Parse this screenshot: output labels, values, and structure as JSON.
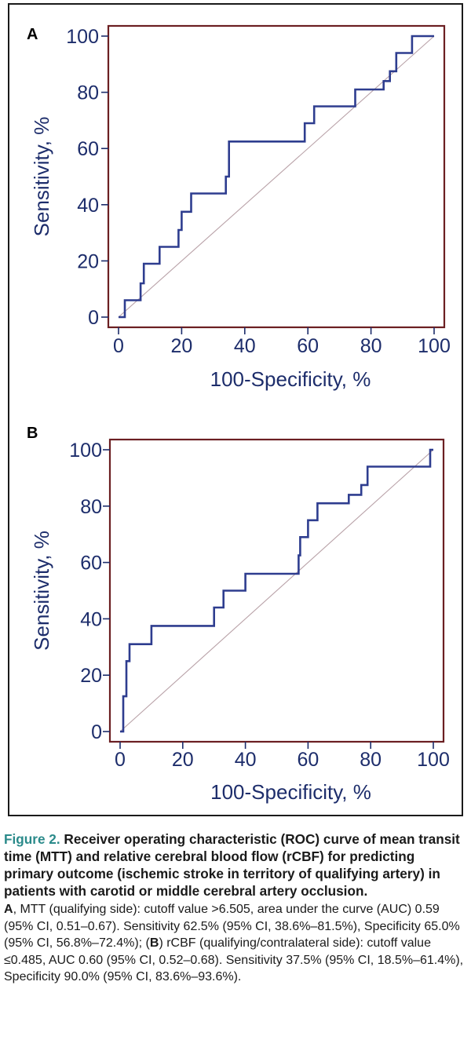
{
  "chart_data": [
    {
      "type": "line",
      "panel": "A",
      "xlabel": "100-Specificity, %",
      "ylabel": "Sensitivity, %",
      "xlim": [
        0,
        100
      ],
      "ylim": [
        0,
        100
      ],
      "xticks": [
        0,
        20,
        40,
        60,
        80,
        100
      ],
      "yticks": [
        0,
        20,
        40,
        60,
        80,
        100
      ],
      "reference_line": [
        [
          0,
          0
        ],
        [
          100,
          100
        ]
      ],
      "series": [
        {
          "x": [
            0,
            0,
            2,
            2,
            7,
            7,
            8,
            8,
            13,
            13,
            19,
            19,
            20,
            20,
            23,
            23,
            34,
            34,
            35,
            35,
            59,
            59,
            62,
            62,
            75,
            75,
            84,
            84,
            86,
            86,
            88,
            88,
            93,
            93,
            100
          ],
          "y": [
            0,
            0,
            0,
            6,
            6,
            12,
            12,
            19,
            19,
            25,
            25,
            31,
            31,
            37.5,
            37.5,
            44,
            44,
            50,
            50,
            62.5,
            62.5,
            69,
            69,
            75,
            75,
            81,
            81,
            84,
            84,
            87.5,
            87.5,
            94,
            94,
            100,
            100
          ]
        }
      ]
    },
    {
      "type": "line",
      "panel": "B",
      "xlabel": "100-Specificity, %",
      "ylabel": "Sensitivity, %",
      "xlim": [
        0,
        100
      ],
      "ylim": [
        0,
        100
      ],
      "xticks": [
        0,
        20,
        40,
        60,
        80,
        100
      ],
      "yticks": [
        0,
        20,
        40,
        60,
        80,
        100
      ],
      "reference_line": [
        [
          0,
          0
        ],
        [
          100,
          100
        ]
      ],
      "series": [
        {
          "x": [
            0,
            0,
            1,
            1,
            2,
            2,
            3,
            3,
            10,
            10,
            30,
            30,
            33,
            33,
            40,
            40,
            57,
            57,
            57.5,
            57.5,
            60,
            60,
            63,
            63,
            73,
            73,
            77,
            77,
            79,
            79,
            85,
            85,
            99,
            99,
            100
          ],
          "y": [
            0,
            0,
            0,
            12.5,
            12.5,
            25,
            25,
            31,
            31,
            37.5,
            37.5,
            44,
            44,
            50,
            50,
            56,
            56,
            62.5,
            62.5,
            69,
            69,
            75,
            75,
            81,
            81,
            84,
            84,
            87.5,
            87.5,
            94,
            94,
            94,
            94,
            100,
            100
          ]
        }
      ]
    }
  ],
  "colors": {
    "curve": "#2e3d8f",
    "reference": "#b9a2a8",
    "frame": "#6b1f22",
    "ticks": "#1d2d6b",
    "figure_label": "#2a8a8a"
  },
  "caption": {
    "figure_label": "Figure 2.",
    "title": "Receiver operating characteristic (ROC) curve of mean transit time (MTT) and relative cerebral blood flow (rCBF) for predicting primary outcome (ischemic stroke in territory of qualifying artery) in patients with carotid or middle cerebral artery occlusion.",
    "panel_a_letter": "A",
    "panel_a_text": ", MTT (qualifying side): cutoff value >6.505, area under the curve (AUC) 0.59 (95% CI, 0.51–0.67). Sensitivity 62.5% (95% CI, 38.6%–81.5%), Specificity 65.0% (95% CI, 56.8%–72.4%); (",
    "panel_b_letter": "B",
    "panel_b_text": ") rCBF (qualifying/contralateral side): cutoff value ≤0.485, AUC 0.60 (95% CI, 0.52–0.68). Sensitivity 37.5% (95% CI, 18.5%–61.4%), Specificity 90.0% (95% CI, 83.6%–93.6%)."
  }
}
